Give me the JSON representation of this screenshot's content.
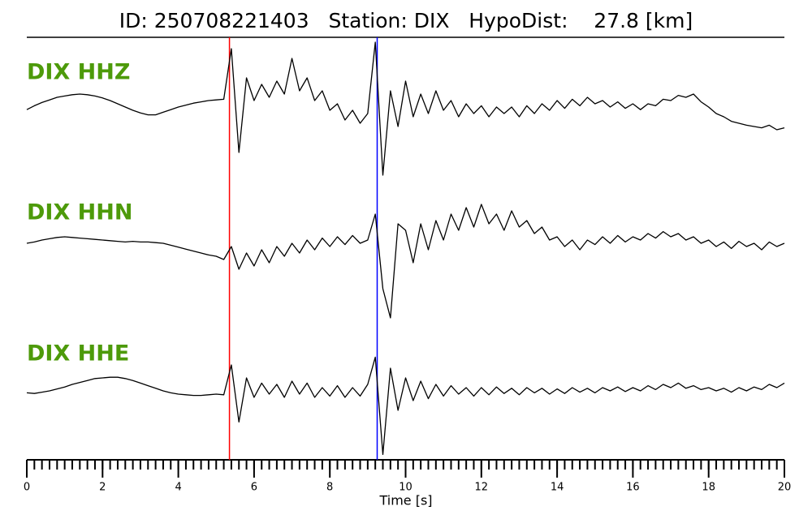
{
  "chart_data": {
    "type": "line",
    "title": "ID: 250708221403   Station: DIX   HypoDist:    27.8 [km]",
    "xlabel": "Time [s]",
    "xlim": [
      0,
      20
    ],
    "xticks": [
      0,
      2,
      4,
      6,
      8,
      10,
      12,
      14,
      16,
      18,
      20
    ],
    "xminor": 0.2,
    "ylim": [
      -1,
      1
    ],
    "label_color": "#4d9a0a",
    "picks": [
      {
        "x": 5.35,
        "color": "#ff0000"
      },
      {
        "x": 9.25,
        "color": "#0000ff"
      }
    ],
    "x": [
      0,
      0.2,
      0.4,
      0.6,
      0.8,
      1,
      1.2,
      1.4,
      1.6,
      1.8,
      2,
      2.2,
      2.4,
      2.6,
      2.8,
      3,
      3.2,
      3.4,
      3.6,
      3.8,
      4,
      4.2,
      4.4,
      4.6,
      4.8,
      5,
      5.2,
      5.4,
      5.6,
      5.8,
      6,
      6.2,
      6.4,
      6.6,
      6.8,
      7,
      7.2,
      7.4,
      7.6,
      7.8,
      8,
      8.2,
      8.4,
      8.6,
      8.8,
      9,
      9.2,
      9.4,
      9.6,
      9.8,
      10,
      10.2,
      10.4,
      10.6,
      10.8,
      11,
      11.2,
      11.4,
      11.6,
      11.8,
      12,
      12.2,
      12.4,
      12.6,
      12.8,
      13,
      13.2,
      13.4,
      13.6,
      13.8,
      14,
      14.2,
      14.4,
      14.6,
      14.8,
      15,
      15.2,
      15.4,
      15.6,
      15.8,
      16,
      16.2,
      16.4,
      16.6,
      16.8,
      17,
      17.2,
      17.4,
      17.6,
      17.8,
      18,
      18.2,
      18.4,
      18.6,
      18.8,
      19,
      19.2,
      19.4,
      19.6,
      19.8,
      20
    ],
    "series": [
      {
        "name": "DIX HHZ",
        "color": "#000000",
        "values": [
          0.06,
          0.12,
          0.17,
          0.21,
          0.25,
          0.27,
          0.29,
          0.3,
          0.29,
          0.27,
          0.24,
          0.2,
          0.15,
          0.1,
          0.05,
          0.01,
          -0.02,
          -0.02,
          0.02,
          0.06,
          0.1,
          0.13,
          0.16,
          0.18,
          0.2,
          0.21,
          0.22,
          1.0,
          -0.6,
          0.55,
          0.2,
          0.45,
          0.25,
          0.5,
          0.3,
          0.85,
          0.35,
          0.55,
          0.2,
          0.35,
          0.05,
          0.15,
          -0.1,
          0.05,
          -0.15,
          0.0,
          1.1,
          -0.95,
          0.35,
          -0.2,
          0.5,
          -0.05,
          0.3,
          0.0,
          0.35,
          0.05,
          0.2,
          -0.05,
          0.15,
          0.0,
          0.12,
          -0.05,
          0.1,
          0.0,
          0.1,
          -0.05,
          0.12,
          0.0,
          0.15,
          0.05,
          0.2,
          0.08,
          0.22,
          0.12,
          0.25,
          0.15,
          0.2,
          0.1,
          0.18,
          0.08,
          0.15,
          0.06,
          0.15,
          0.12,
          0.22,
          0.2,
          0.28,
          0.25,
          0.3,
          0.18,
          0.1,
          0.0,
          -0.05,
          -0.12,
          -0.15,
          -0.18,
          -0.2,
          -0.22,
          -0.18,
          -0.25,
          -0.22
        ]
      },
      {
        "name": "DIX HHN",
        "color": "#000000",
        "values": [
          0.0,
          0.02,
          0.05,
          0.07,
          0.09,
          0.1,
          0.09,
          0.08,
          0.07,
          0.06,
          0.05,
          0.04,
          0.03,
          0.02,
          0.03,
          0.02,
          0.02,
          0.01,
          0.0,
          -0.03,
          -0.06,
          -0.09,
          -0.12,
          -0.15,
          -0.18,
          -0.2,
          -0.25,
          -0.05,
          -0.4,
          -0.15,
          -0.35,
          -0.1,
          -0.3,
          -0.05,
          -0.2,
          0.0,
          -0.15,
          0.05,
          -0.1,
          0.08,
          -0.05,
          0.1,
          -0.02,
          0.12,
          0.0,
          0.05,
          0.45,
          -0.7,
          -1.15,
          0.3,
          0.2,
          -0.3,
          0.3,
          -0.1,
          0.35,
          0.05,
          0.45,
          0.2,
          0.55,
          0.25,
          0.6,
          0.3,
          0.45,
          0.2,
          0.5,
          0.25,
          0.35,
          0.15,
          0.25,
          0.05,
          0.1,
          -0.05,
          0.05,
          -0.1,
          0.05,
          -0.02,
          0.1,
          0.0,
          0.12,
          0.02,
          0.1,
          0.05,
          0.15,
          0.08,
          0.18,
          0.1,
          0.15,
          0.05,
          0.1,
          0.0,
          0.05,
          -0.05,
          0.02,
          -0.08,
          0.03,
          -0.05,
          0.0,
          -0.1,
          0.02,
          -0.05,
          0.0
        ]
      },
      {
        "name": "DIX HHE",
        "color": "#000000",
        "values": [
          -0.03,
          -0.04,
          -0.02,
          0.0,
          0.03,
          0.06,
          0.1,
          0.13,
          0.16,
          0.19,
          0.2,
          0.21,
          0.21,
          0.19,
          0.16,
          0.12,
          0.08,
          0.04,
          0.0,
          -0.03,
          -0.05,
          -0.06,
          -0.07,
          -0.07,
          -0.06,
          -0.05,
          -0.06,
          0.4,
          -0.48,
          0.2,
          -0.1,
          0.12,
          -0.05,
          0.1,
          -0.1,
          0.15,
          -0.05,
          0.12,
          -0.1,
          0.05,
          -0.08,
          0.08,
          -0.1,
          0.05,
          -0.08,
          0.1,
          0.52,
          -0.98,
          0.35,
          -0.3,
          0.2,
          -0.15,
          0.15,
          -0.12,
          0.1,
          -0.08,
          0.08,
          -0.05,
          0.05,
          -0.08,
          0.05,
          -0.06,
          0.06,
          -0.04,
          0.04,
          -0.06,
          0.05,
          -0.03,
          0.04,
          -0.05,
          0.03,
          -0.04,
          0.05,
          -0.02,
          0.04,
          -0.03,
          0.05,
          0.0,
          0.06,
          -0.01,
          0.05,
          0.0,
          0.08,
          0.02,
          0.1,
          0.05,
          0.12,
          0.04,
          0.08,
          0.02,
          0.05,
          0.0,
          0.04,
          -0.02,
          0.05,
          0.0,
          0.06,
          0.02,
          0.1,
          0.05,
          0.12
        ]
      }
    ]
  }
}
